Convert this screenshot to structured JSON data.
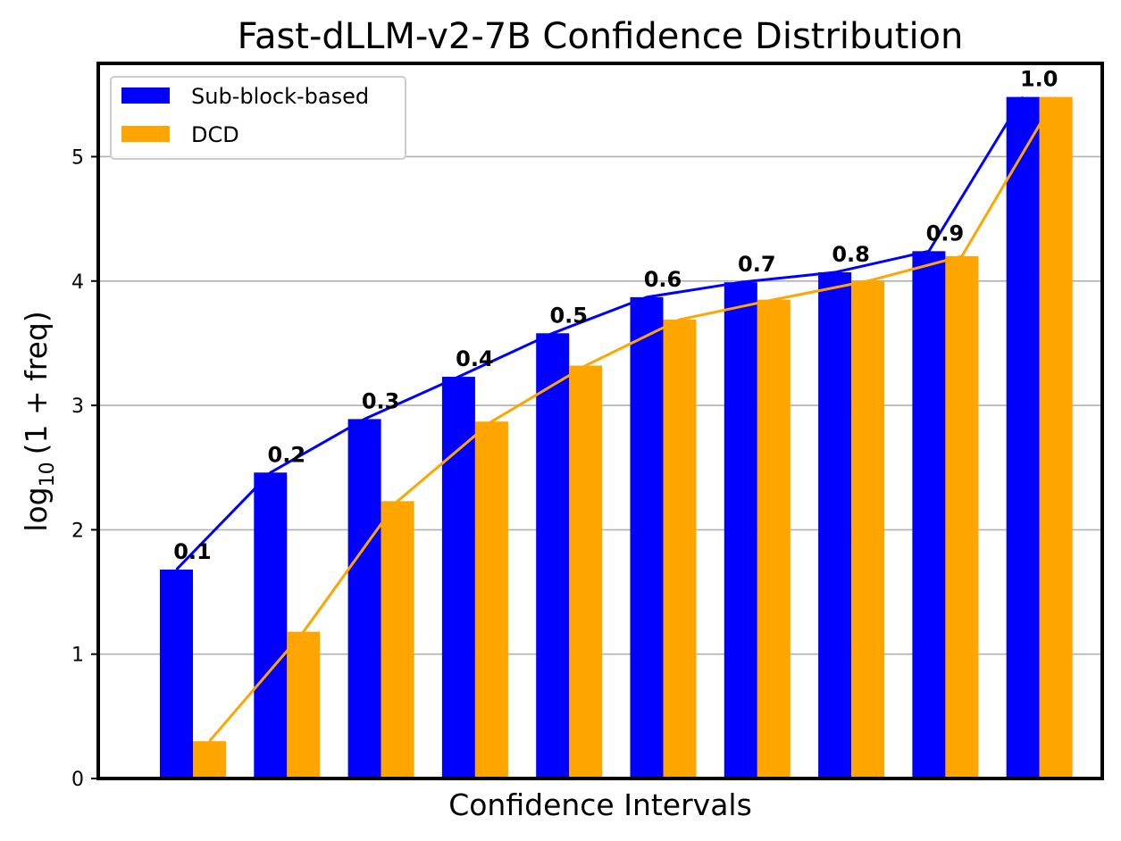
{
  "chart_data": {
    "type": "bar",
    "title": "Fast-dLLM-v2-7B Confidence Distribution",
    "xlabel": "Confidence Intervals",
    "ylabel_prefix": "log",
    "ylabel_subscript": "10",
    "ylabel_suffix": "(1 + freq)",
    "ylim": [
      0,
      5.75
    ],
    "yticks": [
      "0",
      "1",
      "2",
      "3",
      "4",
      "5"
    ],
    "grid": "horizontal",
    "legend_position": "top-left",
    "categories": [
      "0.1",
      "0.2",
      "0.3",
      "0.4",
      "0.5",
      "0.6",
      "0.7",
      "0.8",
      "0.9",
      "1.0"
    ],
    "series": [
      {
        "name": "Sub-block-based",
        "color": "#0000ff",
        "values": [
          1.68,
          2.46,
          2.89,
          3.23,
          3.58,
          3.87,
          3.99,
          4.07,
          4.24,
          5.48
        ]
      },
      {
        "name": "DCD",
        "color": "#ffa500",
        "values": [
          0.3,
          1.18,
          2.23,
          2.87,
          3.32,
          3.69,
          3.85,
          4.0,
          4.2,
          5.48
        ]
      }
    ]
  }
}
